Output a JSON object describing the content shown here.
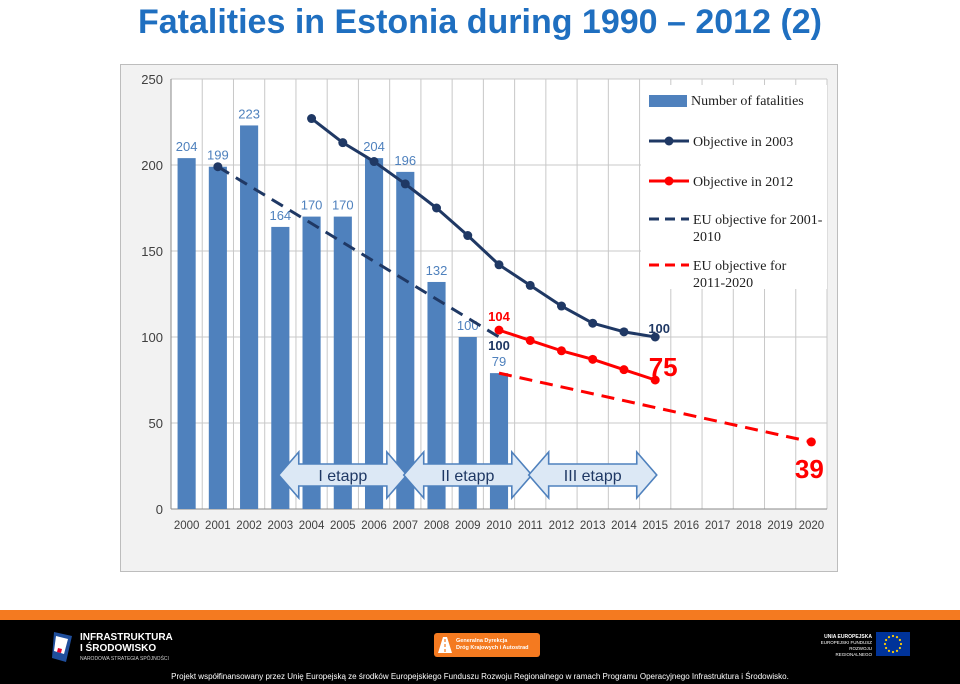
{
  "slide": {
    "title": "Fatalities in Estonia during 1990 – 2012 (2)"
  },
  "colors": {
    "title": "#1f6fc0",
    "bar": "#4f81bd",
    "bar_label": "#4f81bd",
    "objective_2003": "#1f3864",
    "objective_2012": "#ff0000",
    "eu_2001_2010": "#1f3864",
    "eu_2011_2020": "#ff0000",
    "arrow_fill": "#dce8f5",
    "arrow_stroke": "#4f81bd",
    "footer_accent": "#f47a20"
  },
  "chart_data": {
    "type": "bar",
    "x": [
      "2000",
      "2001",
      "2002",
      "2003",
      "2004",
      "2005",
      "2006",
      "2007",
      "2008",
      "2009",
      "2010",
      "2011",
      "2012",
      "2013",
      "2014",
      "2015",
      "2016",
      "2017",
      "2018",
      "2019",
      "2020"
    ],
    "ylim": [
      0,
      250
    ],
    "yticks": [
      0,
      50,
      100,
      150,
      200,
      250
    ],
    "grid": true,
    "legend_position": "top-right",
    "series": [
      {
        "name": "Number of fatalities",
        "type": "bar",
        "x": [
          "2000",
          "2001",
          "2002",
          "2003",
          "2004",
          "2005",
          "2006",
          "2007",
          "2008",
          "2009",
          "2010"
        ],
        "values": [
          204,
          199,
          223,
          164,
          170,
          170,
          204,
          196,
          132,
          100,
          79
        ],
        "labels": [
          "204",
          "199",
          "223",
          "164",
          "170",
          "170",
          "204",
          "196",
          "132",
          "100",
          "79"
        ]
      },
      {
        "name": "Objective in 2003",
        "type": "line",
        "style": "solid",
        "x": [
          "2004",
          "2005",
          "2006",
          "2007",
          "2008",
          "2009",
          "2010",
          "2011",
          "2012",
          "2013",
          "2014",
          "2015"
        ],
        "values": [
          227,
          213,
          202,
          189,
          175,
          159,
          142,
          130,
          118,
          108,
          103,
          100
        ],
        "end_label": "100"
      },
      {
        "name": "Objective in 2012",
        "type": "line",
        "style": "solid",
        "x": [
          "2010",
          "2011",
          "2012",
          "2013",
          "2014",
          "2015"
        ],
        "values": [
          104,
          98,
          92,
          87,
          81,
          75
        ],
        "start_label": "104",
        "end_label": "75"
      },
      {
        "name": "EU objective for 2001-2010",
        "type": "line",
        "style": "dashed",
        "x": [
          "2001",
          "2010"
        ],
        "values": [
          199,
          100
        ],
        "end_label": "100"
      },
      {
        "name": "EU objective for 2011-2020",
        "type": "line",
        "style": "dashed",
        "x": [
          "2010",
          "2020"
        ],
        "values": [
          79,
          39
        ],
        "end_label": "39"
      }
    ],
    "stages": [
      {
        "label": "I etapp",
        "from": "2003",
        "to": "2007"
      },
      {
        "label": "II etapp",
        "from": "2007",
        "to": "2011"
      },
      {
        "label": "III etapp",
        "from": "2011",
        "to": "2015"
      }
    ]
  },
  "footer": {
    "logo_left_line1": "INFRASTRUKTURA",
    "logo_left_line2": "I ŚRODOWISKO",
    "logo_left_line3": "NARODOWA STRATEGIA SPÓJNOŚCI",
    "logo_center_line1": "Generalna Dyrekcja",
    "logo_center_line2": "Dróg Krajowych i Autostrad",
    "logo_right_line1": "UNIA EUROPEJSKA",
    "logo_right_line2": "EUROPEJSKI FUNDUSZ",
    "logo_right_line3": "ROZWOJU REGIONALNEGO",
    "text": "Projekt współfinansowany przez Unię Europejską ze środków Europejskiego Funduszu Rozwoju Regionalnego w ramach Programu Operacyjnego Infrastruktura i Środowisko."
  }
}
